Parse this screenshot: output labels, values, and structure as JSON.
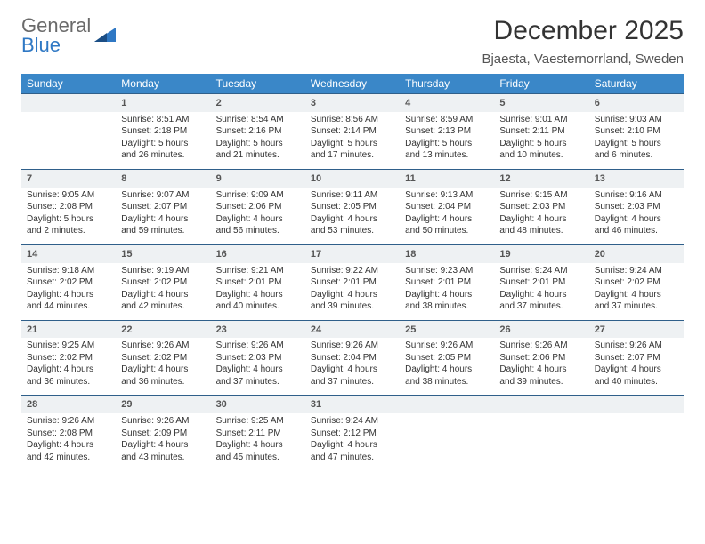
{
  "brand": {
    "line1": "General",
    "line2": "Blue"
  },
  "title": "December 2025",
  "location": "Bjaesta, Vaesternorrland, Sweden",
  "colors": {
    "header_bg": "#3a87c8",
    "header_text": "#ffffff",
    "daynum_bg": "#eef1f3",
    "daynum_border": "#2f5f8a",
    "brand_gray": "#6a6a6a",
    "brand_blue": "#2f78c4"
  },
  "weekdays": [
    "Sunday",
    "Monday",
    "Tuesday",
    "Wednesday",
    "Thursday",
    "Friday",
    "Saturday"
  ],
  "weeks": [
    {
      "nums": [
        "",
        "1",
        "2",
        "3",
        "4",
        "5",
        "6"
      ],
      "cells": [
        null,
        {
          "sunrise": "8:51 AM",
          "sunset": "2:18 PM",
          "daylight": "5 hours and 26 minutes."
        },
        {
          "sunrise": "8:54 AM",
          "sunset": "2:16 PM",
          "daylight": "5 hours and 21 minutes."
        },
        {
          "sunrise": "8:56 AM",
          "sunset": "2:14 PM",
          "daylight": "5 hours and 17 minutes."
        },
        {
          "sunrise": "8:59 AM",
          "sunset": "2:13 PM",
          "daylight": "5 hours and 13 minutes."
        },
        {
          "sunrise": "9:01 AM",
          "sunset": "2:11 PM",
          "daylight": "5 hours and 10 minutes."
        },
        {
          "sunrise": "9:03 AM",
          "sunset": "2:10 PM",
          "daylight": "5 hours and 6 minutes."
        }
      ]
    },
    {
      "nums": [
        "7",
        "8",
        "9",
        "10",
        "11",
        "12",
        "13"
      ],
      "cells": [
        {
          "sunrise": "9:05 AM",
          "sunset": "2:08 PM",
          "daylight": "5 hours and 2 minutes."
        },
        {
          "sunrise": "9:07 AM",
          "sunset": "2:07 PM",
          "daylight": "4 hours and 59 minutes."
        },
        {
          "sunrise": "9:09 AM",
          "sunset": "2:06 PM",
          "daylight": "4 hours and 56 minutes."
        },
        {
          "sunrise": "9:11 AM",
          "sunset": "2:05 PM",
          "daylight": "4 hours and 53 minutes."
        },
        {
          "sunrise": "9:13 AM",
          "sunset": "2:04 PM",
          "daylight": "4 hours and 50 minutes."
        },
        {
          "sunrise": "9:15 AM",
          "sunset": "2:03 PM",
          "daylight": "4 hours and 48 minutes."
        },
        {
          "sunrise": "9:16 AM",
          "sunset": "2:03 PM",
          "daylight": "4 hours and 46 minutes."
        }
      ]
    },
    {
      "nums": [
        "14",
        "15",
        "16",
        "17",
        "18",
        "19",
        "20"
      ],
      "cells": [
        {
          "sunrise": "9:18 AM",
          "sunset": "2:02 PM",
          "daylight": "4 hours and 44 minutes."
        },
        {
          "sunrise": "9:19 AM",
          "sunset": "2:02 PM",
          "daylight": "4 hours and 42 minutes."
        },
        {
          "sunrise": "9:21 AM",
          "sunset": "2:01 PM",
          "daylight": "4 hours and 40 minutes."
        },
        {
          "sunrise": "9:22 AM",
          "sunset": "2:01 PM",
          "daylight": "4 hours and 39 minutes."
        },
        {
          "sunrise": "9:23 AM",
          "sunset": "2:01 PM",
          "daylight": "4 hours and 38 minutes."
        },
        {
          "sunrise": "9:24 AM",
          "sunset": "2:01 PM",
          "daylight": "4 hours and 37 minutes."
        },
        {
          "sunrise": "9:24 AM",
          "sunset": "2:02 PM",
          "daylight": "4 hours and 37 minutes."
        }
      ]
    },
    {
      "nums": [
        "21",
        "22",
        "23",
        "24",
        "25",
        "26",
        "27"
      ],
      "cells": [
        {
          "sunrise": "9:25 AM",
          "sunset": "2:02 PM",
          "daylight": "4 hours and 36 minutes."
        },
        {
          "sunrise": "9:26 AM",
          "sunset": "2:02 PM",
          "daylight": "4 hours and 36 minutes."
        },
        {
          "sunrise": "9:26 AM",
          "sunset": "2:03 PM",
          "daylight": "4 hours and 37 minutes."
        },
        {
          "sunrise": "9:26 AM",
          "sunset": "2:04 PM",
          "daylight": "4 hours and 37 minutes."
        },
        {
          "sunrise": "9:26 AM",
          "sunset": "2:05 PM",
          "daylight": "4 hours and 38 minutes."
        },
        {
          "sunrise": "9:26 AM",
          "sunset": "2:06 PM",
          "daylight": "4 hours and 39 minutes."
        },
        {
          "sunrise": "9:26 AM",
          "sunset": "2:07 PM",
          "daylight": "4 hours and 40 minutes."
        }
      ]
    },
    {
      "nums": [
        "28",
        "29",
        "30",
        "31",
        "",
        "",
        ""
      ],
      "cells": [
        {
          "sunrise": "9:26 AM",
          "sunset": "2:08 PM",
          "daylight": "4 hours and 42 minutes."
        },
        {
          "sunrise": "9:26 AM",
          "sunset": "2:09 PM",
          "daylight": "4 hours and 43 minutes."
        },
        {
          "sunrise": "9:25 AM",
          "sunset": "2:11 PM",
          "daylight": "4 hours and 45 minutes."
        },
        {
          "sunrise": "9:24 AM",
          "sunset": "2:12 PM",
          "daylight": "4 hours and 47 minutes."
        },
        null,
        null,
        null
      ]
    }
  ],
  "labels": {
    "sunrise": "Sunrise: ",
    "sunset": "Sunset: ",
    "daylight": "Daylight: "
  }
}
